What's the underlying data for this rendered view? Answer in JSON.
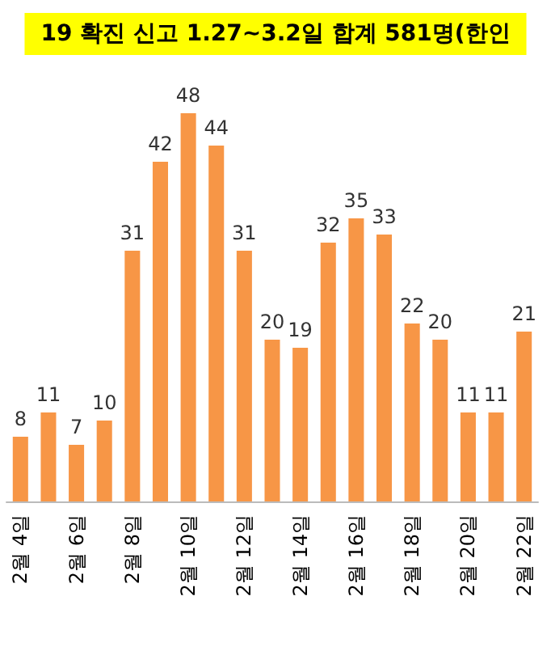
{
  "chart_data": {
    "type": "bar",
    "title": "19 확진 신고 1.27~3.2일 합계 581명(한인",
    "categories": [
      "2월 4일",
      null,
      "2월 6일",
      null,
      "2월 8일",
      null,
      "2월 10일",
      null,
      "2월 12일",
      null,
      "2월 14일",
      null,
      "2월 16일",
      null,
      "2월 18일",
      null,
      "2월 20일",
      null,
      "2월 22일"
    ],
    "values": [
      8,
      11,
      7,
      10,
      31,
      42,
      48,
      44,
      31,
      20,
      19,
      32,
      35,
      33,
      22,
      20,
      11,
      11,
      21
    ],
    "color": "#f79646",
    "data_labels": true,
    "tick_labels": "x"
  }
}
